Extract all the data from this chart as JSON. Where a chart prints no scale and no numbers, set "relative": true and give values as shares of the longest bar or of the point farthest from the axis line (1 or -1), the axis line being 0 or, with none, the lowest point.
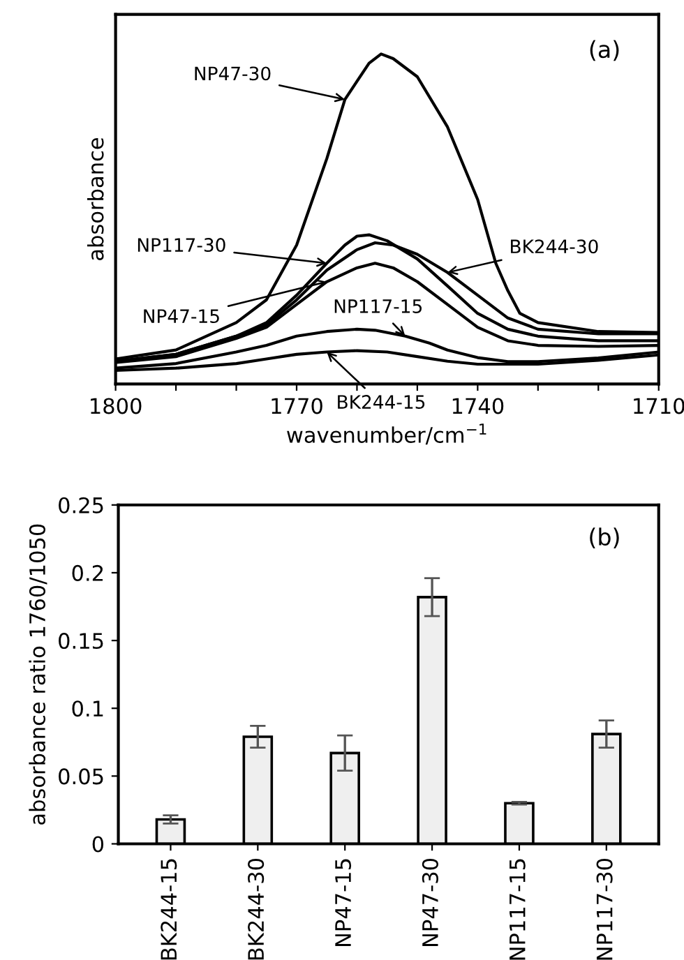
{
  "chart_data": [
    {
      "type": "line",
      "relative": true,
      "xlabel": "wavenumber/cm$^{−1}$",
      "ylabel": "absorbance",
      "xlim": [
        1800,
        1710
      ],
      "xticks": [
        1800,
        {
          "value": 1790,
          "label": null
        },
        {
          "value": 1780,
          "label": null
        },
        1770,
        {
          "value": 1760,
          "label": null
        },
        {
          "value": 1750,
          "label": null
        },
        1740,
        {
          "value": 1730,
          "label": null
        },
        {
          "value": 1720,
          "label": null
        },
        1710
      ],
      "tick_labels": "x",
      "grid": false,
      "marker": "none",
      "line_style": "solid",
      "series": [
        {
          "color": "#000000",
          "x": [
            1800,
            1790,
            1780,
            1775,
            1770,
            1765,
            1762,
            1758,
            1756,
            1754,
            1750,
            1745,
            1740,
            1737,
            1735,
            1733,
            1730,
            1720,
            1710
          ],
          "values": [
            0.076,
            0.103,
            0.186,
            0.255,
            0.421,
            0.683,
            0.862,
            0.972,
            1.0,
            0.986,
            0.931,
            0.779,
            0.559,
            0.366,
            0.283,
            0.214,
            0.186,
            0.159,
            0.156
          ]
        },
        {
          "color": "#000000",
          "x": [
            1800,
            1790,
            1780,
            1775,
            1770,
            1765,
            1762,
            1760,
            1758,
            1755,
            1750,
            1745,
            1740,
            1735,
            1730,
            1720,
            1710
          ],
          "values": [
            0.069,
            0.09,
            0.145,
            0.186,
            0.269,
            0.366,
            0.421,
            0.448,
            0.452,
            0.434,
            0.379,
            0.297,
            0.214,
            0.166,
            0.145,
            0.131,
            0.131
          ]
        },
        {
          "color": "#000000",
          "x": [
            1800,
            1790,
            1780,
            1775,
            1770,
            1765,
            1760,
            1757,
            1754,
            1750,
            1745,
            1740,
            1735,
            1730,
            1720,
            1710
          ],
          "values": [
            0.069,
            0.09,
            0.145,
            0.179,
            0.255,
            0.345,
            0.407,
            0.428,
            0.421,
            0.393,
            0.338,
            0.269,
            0.2,
            0.166,
            0.152,
            0.152
          ]
        },
        {
          "color": "#000000",
          "x": [
            1800,
            1790,
            1780,
            1775,
            1770,
            1765,
            1760,
            1757,
            1754,
            1750,
            1745,
            1740,
            1735,
            1730,
            1720,
            1710
          ],
          "values": [
            0.065,
            0.083,
            0.138,
            0.172,
            0.241,
            0.31,
            0.352,
            0.366,
            0.352,
            0.31,
            0.241,
            0.172,
            0.131,
            0.117,
            0.114,
            0.117
          ]
        },
        {
          "color": "#000000",
          "x": [
            1800,
            1790,
            1780,
            1775,
            1770,
            1765,
            1760,
            1757,
            1752,
            1748,
            1745,
            1740,
            1735,
            1730,
            1720,
            1710
          ],
          "values": [
            0.048,
            0.062,
            0.097,
            0.117,
            0.145,
            0.159,
            0.166,
            0.163,
            0.145,
            0.124,
            0.103,
            0.08,
            0.068,
            0.068,
            0.079,
            0.097
          ]
        },
        {
          "color": "#000000",
          "x": [
            1800,
            1790,
            1780,
            1775,
            1770,
            1765,
            1760,
            1755,
            1750,
            1745,
            1740,
            1730,
            1720,
            1710
          ],
          "values": [
            0.041,
            0.048,
            0.062,
            0.076,
            0.09,
            0.097,
            0.101,
            0.097,
            0.083,
            0.069,
            0.06,
            0.06,
            0.072,
            0.088
          ]
        }
      ],
      "annotations": [
        "(a)",
        {
          "text": "NP47-30",
          "x": 1762,
          "y": 0.862
        },
        {
          "text": "NP117-30",
          "x": 1765,
          "y": 0.366
        },
        {
          "text": "NP47-15",
          "x": 1765,
          "y": 0.31
        },
        {
          "text": "BK244-30",
          "x": 1745,
          "y": 0.338
        },
        {
          "text": "NP117-15",
          "x": 1752,
          "y": 0.145
        },
        {
          "text": "BK244-15",
          "x": 1765,
          "y": 0.097
        }
      ]
    },
    {
      "type": "bar",
      "ylabel": "absorbance ratio 1760/1050",
      "categories": [
        "BK244-15",
        "BK244-30",
        "NP47-15",
        "NP47-30",
        "NP117-15",
        "NP117-30"
      ],
      "values": [
        0.018,
        0.079,
        0.067,
        0.182,
        0.03,
        0.081
      ],
      "errors": [
        0.003,
        0.008,
        0.013,
        0.014,
        0.001,
        0.01
      ],
      "color": "#efefef",
      "ylim": [
        0,
        0.25
      ],
      "yticks": [
        0,
        0.05,
        0.1,
        0.15,
        0.2,
        0.25
      ],
      "grid": false,
      "annotations": [
        "(b)"
      ]
    }
  ]
}
